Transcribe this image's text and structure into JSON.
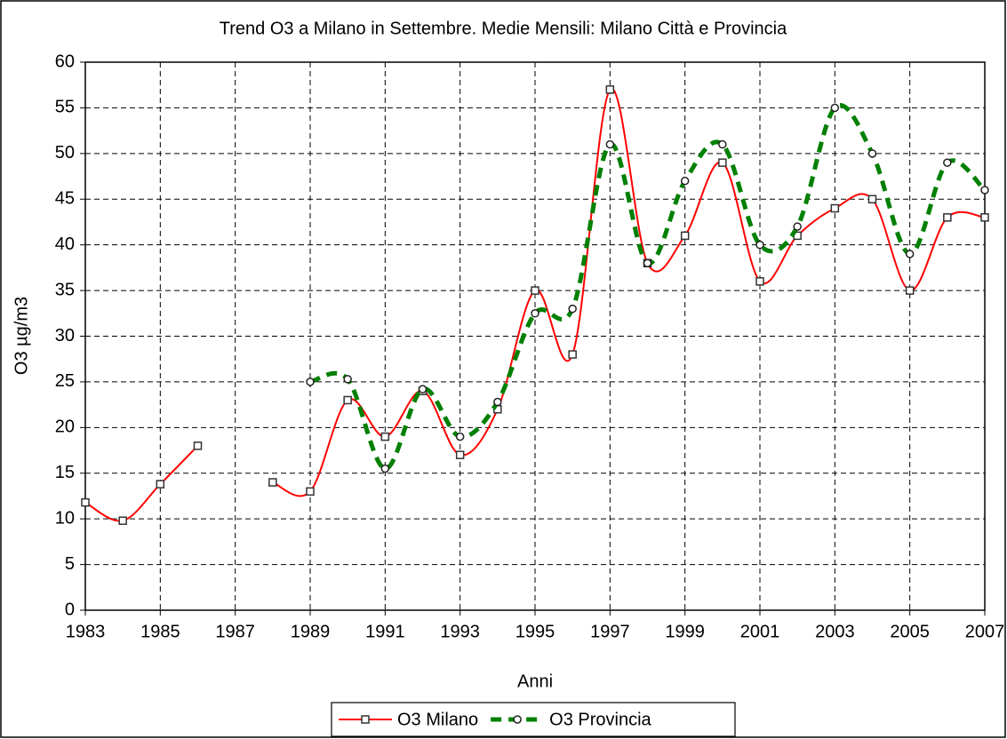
{
  "chart_data": {
    "type": "line",
    "title": "Trend O3 a Milano in Settembre.  Medie Mensili: Milano Città e Provincia",
    "x_label": "Anni",
    "y_label": "O3 µg/m3",
    "x": [
      1983,
      1984,
      1985,
      1986,
      1987,
      1988,
      1989,
      1990,
      1991,
      1992,
      1993,
      1994,
      1995,
      1996,
      1997,
      1998,
      1999,
      2000,
      2001,
      2002,
      2003,
      2004,
      2005,
      2006,
      2007
    ],
    "series": [
      {
        "name": "O3 Milano",
        "color": "#ff0000",
        "marker": "square",
        "dash": "solid",
        "values": [
          11.8,
          9.8,
          13.8,
          18,
          null,
          14,
          13,
          23,
          19,
          24,
          17,
          22,
          35,
          28,
          57,
          38,
          41,
          49,
          36,
          41,
          44,
          45,
          35,
          43,
          43
        ]
      },
      {
        "name": "O3 Provincia",
        "color": "#008000",
        "marker": "circle",
        "dash": "dashed",
        "values": [
          null,
          null,
          null,
          null,
          null,
          null,
          25,
          25.3,
          15.5,
          24.2,
          19,
          22.8,
          32.5,
          33,
          51,
          38,
          47,
          51,
          40,
          42,
          55,
          50,
          39,
          49,
          46
        ]
      }
    ],
    "xlim": [
      1983,
      2007
    ],
    "xticks": [
      1983,
      1985,
      1987,
      1989,
      1991,
      1993,
      1995,
      1997,
      1999,
      2001,
      2003,
      2005,
      2007
    ],
    "ylim": [
      0,
      60
    ],
    "yticks": [
      0,
      5,
      10,
      15,
      20,
      25,
      30,
      35,
      40,
      45,
      50,
      55,
      60
    ],
    "grid": true,
    "legend": "bottom"
  }
}
